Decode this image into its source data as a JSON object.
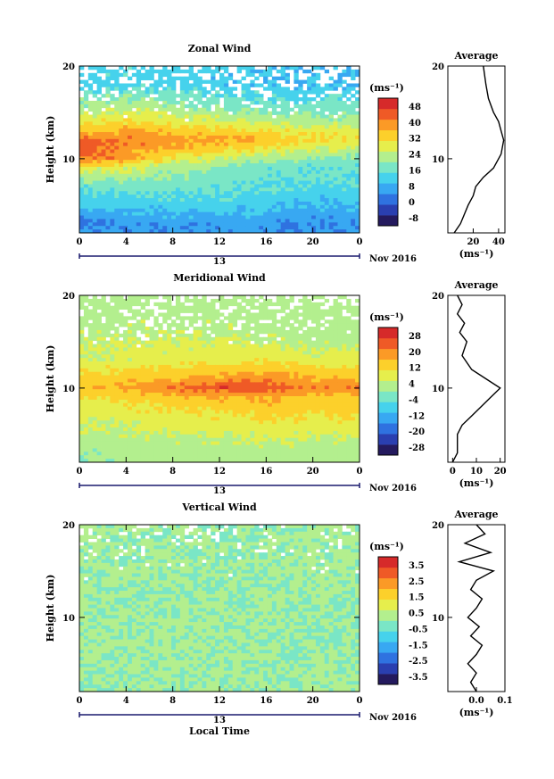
{
  "colormap": [
    "#241a5e",
    "#2a3fb0",
    "#2f72e0",
    "#38a8f2",
    "#46d2ec",
    "#7ae6c6",
    "#b3ef8e",
    "#e6ee4c",
    "#fcd02b",
    "#fb9a26",
    "#ef5a26",
    "#d62a2a"
  ],
  "panels": [
    {
      "title": "Zonal Wind",
      "ylabel": "Height (km)",
      "y_ticks": [
        "20",
        "10"
      ],
      "x_ticks": [
        "0",
        "4",
        "8",
        "12",
        "16",
        "20",
        "0"
      ],
      "date_marker": "13",
      "date_label": "Nov 2016",
      "unit": "(ms⁻¹)",
      "colorbar_ticks": [
        "48",
        "40",
        "32",
        "24",
        "16",
        "8",
        "0",
        "-8"
      ],
      "colorbar_range": [
        -8,
        52
      ],
      "avg_title": "Average",
      "avg_y_ticks": [
        "20",
        "10"
      ],
      "avg_x_ticks": [
        "20",
        "40"
      ],
      "avg_unit": "(ms⁻¹)"
    },
    {
      "title": "Meridional Wind",
      "ylabel": "Height (km)",
      "y_ticks": [
        "20",
        "10"
      ],
      "x_ticks": [
        "0",
        "4",
        "8",
        "12",
        "16",
        "20",
        "0"
      ],
      "date_marker": "13",
      "date_label": "Nov 2016",
      "unit": "(ms⁻¹)",
      "colorbar_ticks": [
        "28",
        "20",
        "12",
        "4",
        "-4",
        "-12",
        "-20",
        "-28"
      ],
      "colorbar_range": [
        -32,
        32
      ],
      "avg_title": "Average",
      "avg_y_ticks": [
        "20",
        "10"
      ],
      "avg_x_ticks": [
        "0",
        "10",
        "20"
      ],
      "avg_unit": "(ms⁻¹)"
    },
    {
      "title": "Vertical Wind",
      "ylabel": "Height (km)",
      "y_ticks": [
        "20",
        "10"
      ],
      "x_ticks": [
        "0",
        "4",
        "8",
        "12",
        "16",
        "20",
        "0"
      ],
      "date_marker": "13",
      "date_label": "Nov 2016",
      "unit": "(ms⁻¹)",
      "colorbar_ticks": [
        "3.5",
        "2.5",
        "1.5",
        "0.5",
        "-0.5",
        "-1.5",
        "-2.5",
        "-3.5"
      ],
      "colorbar_range": [
        -4,
        4
      ],
      "avg_title": "Average",
      "avg_y_ticks": [
        "20",
        "10"
      ],
      "avg_x_ticks": [
        "0.0",
        "0.1"
      ],
      "avg_unit": "(ms⁻¹)"
    }
  ],
  "xlabel": "Local Time",
  "chart_data": [
    {
      "type": "heatmap",
      "title": "Zonal Wind",
      "ylabel": "Height (km)",
      "xlabel": "",
      "x_range": [
        0,
        24
      ],
      "y_range": [
        2,
        20
      ],
      "rows_height_km": [
        3,
        5,
        7,
        9,
        10,
        11,
        12,
        13,
        14,
        16,
        18
      ],
      "cols_local_time_h": [
        0,
        4,
        8,
        12,
        16,
        20
      ],
      "values": [
        [
          6,
          8,
          8,
          9,
          8,
          7
        ],
        [
          13,
          14,
          14,
          15,
          13,
          12
        ],
        [
          18,
          19,
          19,
          18,
          17,
          16
        ],
        [
          30,
          28,
          24,
          21,
          19,
          18
        ],
        [
          44,
          38,
          30,
          26,
          24,
          21
        ],
        [
          46,
          40,
          36,
          34,
          30,
          27
        ],
        [
          44,
          42,
          40,
          38,
          36,
          33
        ],
        [
          36,
          38,
          36,
          34,
          32,
          30
        ],
        [
          30,
          32,
          30,
          28,
          26,
          24
        ],
        [
          22,
          24,
          22,
          20,
          18,
          18
        ],
        [
          14,
          16,
          14,
          14,
          13,
          12
        ]
      ]
    },
    {
      "type": "line",
      "title": "Average",
      "ylabel": "Height (km)",
      "xlim": [
        0,
        45
      ],
      "ylim": [
        2,
        20
      ],
      "x": [
        5,
        10,
        16,
        20,
        22,
        28,
        36,
        42,
        44,
        42,
        40,
        36,
        32,
        30,
        28
      ],
      "y": [
        2,
        3,
        5,
        6,
        7,
        8,
        9,
        10.5,
        12,
        13,
        14,
        15,
        16.5,
        18,
        20
      ]
    },
    {
      "type": "heatmap",
      "title": "Meridional Wind",
      "ylabel": "Height (km)",
      "xlabel": "",
      "x_range": [
        0,
        24
      ],
      "y_range": [
        2,
        20
      ],
      "rows_height_km": [
        3,
        5,
        7,
        9,
        10,
        11,
        13,
        15,
        17,
        19
      ],
      "cols_local_time_h": [
        0,
        4,
        8,
        12,
        16,
        20
      ],
      "values": [
        [
          0,
          2,
          2,
          2,
          3,
          2
        ],
        [
          4,
          4,
          5,
          6,
          7,
          6
        ],
        [
          6,
          8,
          9,
          10,
          12,
          11
        ],
        [
          10,
          12,
          14,
          16,
          16,
          14
        ],
        [
          14,
          18,
          22,
          26,
          26,
          20
        ],
        [
          12,
          14,
          16,
          18,
          20,
          16
        ],
        [
          6,
          7,
          8,
          9,
          10,
          8
        ],
        [
          4,
          5,
          6,
          6,
          5,
          4
        ],
        [
          3,
          4,
          3,
          4,
          3,
          2
        ],
        [
          2,
          3,
          2,
          2,
          2,
          2
        ]
      ]
    },
    {
      "type": "line",
      "title": "Average",
      "ylabel": "Height (km)",
      "xlim": [
        -2,
        22
      ],
      "ylim": [
        2,
        20
      ],
      "x": [
        0,
        2,
        2,
        4,
        8,
        12,
        16,
        20,
        14,
        8,
        4,
        6,
        3,
        5,
        2,
        4,
        2
      ],
      "y": [
        2,
        3,
        5,
        6,
        7,
        8,
        9,
        10,
        11,
        12,
        13.5,
        15,
        16,
        17,
        18,
        19,
        20
      ]
    },
    {
      "type": "heatmap",
      "title": "Vertical Wind",
      "ylabel": "Height (km)",
      "xlabel": "Local Time",
      "x_range": [
        0,
        24
      ],
      "y_range": [
        2,
        20
      ],
      "rows_height_km": [
        3,
        6,
        9,
        12,
        15,
        18
      ],
      "cols_local_time_h": [
        0,
        4,
        8,
        12,
        16,
        20
      ],
      "values": [
        [
          0.0,
          0.1,
          0.0,
          0.1,
          0.0,
          0.1
        ],
        [
          0.1,
          0.0,
          0.1,
          0.0,
          0.1,
          0.0
        ],
        [
          0.0,
          0.1,
          0.1,
          0.1,
          0.0,
          0.0
        ],
        [
          0.1,
          0.0,
          0.0,
          0.1,
          0.1,
          0.0
        ],
        [
          0.0,
          0.1,
          0.0,
          0.0,
          0.1,
          0.1
        ],
        [
          0.2,
          0.0,
          0.1,
          0.0,
          0.0,
          0.1
        ]
      ]
    },
    {
      "type": "line",
      "title": "Average",
      "ylabel": "Height (km)",
      "xlim": [
        -0.1,
        0.1
      ],
      "ylim": [
        2,
        20
      ],
      "x": [
        0.0,
        -0.02,
        0.0,
        -0.03,
        0.0,
        0.02,
        -0.02,
        0.01,
        -0.03,
        0.0,
        0.02,
        -0.02,
        0.0,
        0.06,
        -0.06,
        0.05,
        -0.04,
        0.03,
        0.0
      ],
      "y": [
        2,
        3,
        4,
        5,
        6,
        7,
        8,
        9,
        10,
        11,
        12,
        13,
        14,
        15,
        16,
        17,
        18,
        19,
        20
      ]
    }
  ]
}
